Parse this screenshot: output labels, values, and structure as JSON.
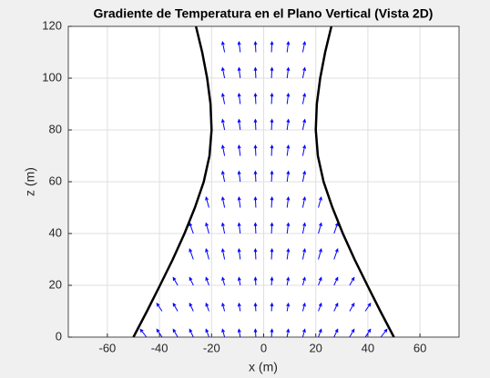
{
  "chart_data": {
    "type": "quiver",
    "title": "Gradiente de Temperatura en el Plano Vertical (Vista 2D)",
    "xlabel": "x (m)",
    "ylabel": "z (m)",
    "xlim": [
      -75,
      75
    ],
    "ylim": [
      0,
      120
    ],
    "xticks": [
      -60,
      -40,
      -20,
      0,
      20,
      40,
      60
    ],
    "yticks": [
      0,
      20,
      40,
      60,
      80,
      100,
      120
    ],
    "grid": true,
    "arrow_color": "#0000ff",
    "rows": [
      {
        "z": 0,
        "x": [
          -45,
          -39,
          -33,
          -27,
          -21,
          -15,
          -9,
          -3,
          3,
          9,
          15,
          21,
          27,
          33,
          39,
          45
        ],
        "u": [
          -2.3,
          -2,
          -1.7,
          -1.4,
          -1.1,
          -0.8,
          -0.5,
          -0.2,
          0.2,
          0.5,
          0.8,
          1.1,
          1.4,
          1.7,
          2,
          2.3
        ],
        "w": [
          3,
          3,
          3,
          3,
          3,
          3,
          3,
          3,
          3,
          3,
          3,
          3,
          3,
          3,
          3,
          3
        ]
      },
      {
        "z": 10,
        "x": [
          -39,
          -33,
          -27,
          -21,
          -15,
          -9,
          -3,
          3,
          9,
          15,
          21,
          27,
          33,
          39
        ],
        "u": [
          -2,
          -1.7,
          -1.4,
          -1.1,
          -0.8,
          -0.5,
          -0.2,
          0.2,
          0.5,
          0.8,
          1.1,
          1.4,
          1.7,
          2
        ],
        "w": [
          3,
          3,
          3,
          3,
          3,
          3,
          3,
          3,
          3,
          3,
          3,
          3,
          3,
          3
        ]
      },
      {
        "z": 20,
        "x": [
          -33,
          -27,
          -21,
          -15,
          -9,
          -3,
          3,
          9,
          15,
          21,
          27,
          33
        ],
        "u": [
          -1.7,
          -1.4,
          -1.1,
          -0.8,
          -0.5,
          -0.2,
          0.2,
          0.5,
          0.8,
          1.1,
          1.4,
          1.7
        ],
        "w": [
          3,
          3,
          3,
          3,
          3,
          3,
          3,
          3,
          3,
          3,
          3,
          3
        ]
      },
      {
        "z": 30,
        "x": [
          -27,
          -21,
          -15,
          -9,
          -3,
          3,
          9,
          15,
          21,
          27
        ],
        "u": [
          -1.4,
          -1.1,
          -0.8,
          -0.5,
          -0.2,
          0.2,
          0.5,
          0.8,
          1.1,
          1.4
        ],
        "w": [
          4,
          4,
          4,
          4,
          4,
          4,
          4,
          4,
          4,
          4
        ]
      },
      {
        "z": 40,
        "x": [
          -27,
          -21,
          -15,
          -9,
          -3,
          3,
          9,
          15,
          21,
          27
        ],
        "u": [
          -1.4,
          -1.1,
          -0.8,
          -0.5,
          -0.2,
          0.2,
          0.5,
          0.8,
          1.1,
          1.4
        ],
        "w": [
          4,
          4,
          4,
          4,
          4,
          4,
          4,
          4,
          4,
          4
        ]
      },
      {
        "z": 50,
        "x": [
          -21,
          -15,
          -9,
          -3,
          3,
          9,
          15,
          21
        ],
        "u": [
          -1.1,
          -0.8,
          -0.5,
          -0.2,
          0.2,
          0.5,
          0.8,
          1.1
        ],
        "w": [
          4,
          4,
          4,
          4,
          4,
          4,
          4,
          4
        ]
      },
      {
        "z": 60,
        "x": [
          -15,
          -9,
          -3,
          3,
          9,
          15
        ],
        "u": [
          -0.8,
          -0.5,
          -0.2,
          0.2,
          0.5,
          0.8
        ],
        "w": [
          4,
          4,
          4,
          4,
          4,
          4
        ]
      },
      {
        "z": 70,
        "x": [
          -15,
          -9,
          -3,
          3,
          9,
          15
        ],
        "u": [
          -0.8,
          -0.5,
          -0.2,
          0.2,
          0.5,
          0.8
        ],
        "w": [
          4,
          4,
          4,
          4,
          4,
          4
        ]
      },
      {
        "z": 80,
        "x": [
          -15,
          -9,
          -3,
          3,
          9,
          15
        ],
        "u": [
          -0.8,
          -0.5,
          -0.2,
          0.2,
          0.5,
          0.8
        ],
        "w": [
          4,
          4,
          4,
          4,
          4,
          4
        ]
      },
      {
        "z": 90,
        "x": [
          -15,
          -9,
          -3,
          3,
          9,
          15
        ],
        "u": [
          -0.8,
          -0.5,
          -0.2,
          0.2,
          0.5,
          0.8
        ],
        "w": [
          4,
          4,
          4,
          4,
          4,
          4
        ]
      },
      {
        "z": 100,
        "x": [
          -15,
          -9,
          -3,
          3,
          9,
          15
        ],
        "u": [
          -0.8,
          -0.5,
          -0.2,
          0.2,
          0.5,
          0.8
        ],
        "w": [
          4,
          4,
          4,
          4,
          4,
          4
        ]
      },
      {
        "z": 110,
        "x": [
          -15,
          -9,
          -3,
          3,
          9,
          15
        ],
        "u": [
          -0.8,
          -0.5,
          -0.2,
          0.2,
          0.5,
          0.8
        ],
        "w": [
          4,
          4,
          4,
          4,
          4,
          4
        ]
      }
    ],
    "curves": [
      {
        "color": "#000000",
        "x": [
          -50,
          -44.8,
          -39.8,
          -34.9,
          -30.4,
          -26.4,
          -23,
          -20.8,
          -20,
          -20.4,
          -21.7,
          -23.6,
          -26
        ],
        "z": [
          0,
          10,
          20,
          30,
          40,
          50,
          60,
          70,
          80,
          90,
          100,
          110,
          120
        ]
      },
      {
        "color": "#000000",
        "x": [
          50,
          44.8,
          39.8,
          34.9,
          30.4,
          26.4,
          23,
          20.8,
          20,
          20.4,
          21.7,
          23.6,
          26
        ],
        "z": [
          0,
          10,
          20,
          30,
          40,
          50,
          60,
          70,
          80,
          90,
          100,
          110,
          120
        ]
      }
    ]
  }
}
